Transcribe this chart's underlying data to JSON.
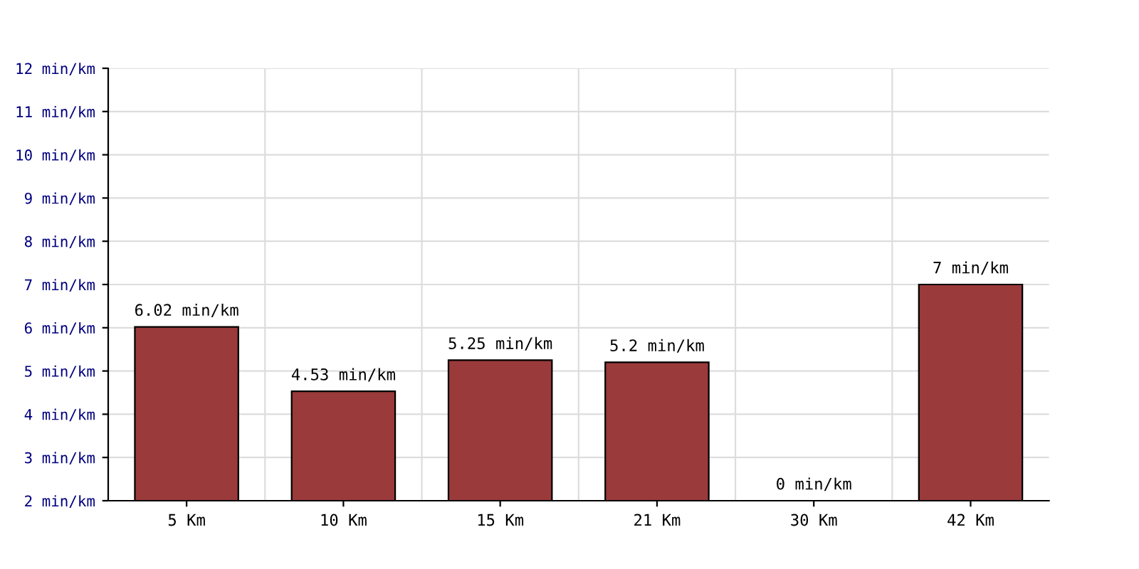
{
  "chart_data": {
    "type": "bar",
    "categories": [
      "5 Km",
      "10 Km",
      "15 Km",
      "21 Km",
      "30 Km",
      "42 Km"
    ],
    "values": [
      6.02,
      4.53,
      5.25,
      5.2,
      null,
      7
    ],
    "value_labels": [
      "6.02 min/km",
      "4.53 min/km",
      "5.25 min/km",
      "5.2 min/km",
      "0 min/km",
      "7 min/km"
    ],
    "color": "#9a3a3a",
    "ylim": [
      2,
      12
    ],
    "yticks": [
      {
        "value": 2,
        "label": "2 min/km"
      },
      {
        "value": 3,
        "label": "3 min/km"
      },
      {
        "value": 4,
        "label": "4 min/km"
      },
      {
        "value": 5,
        "label": "5 min/km"
      },
      {
        "value": 6,
        "label": "6 min/km"
      },
      {
        "value": 7,
        "label": "7 min/km"
      },
      {
        "value": 8,
        "label": "8 min/km"
      },
      {
        "value": 9,
        "label": "9 min/km"
      },
      {
        "value": 10,
        "label": "10 min/km"
      },
      {
        "value": 11,
        "label": "11 min/km"
      },
      {
        "value": 12,
        "label": "12 min/km"
      }
    ],
    "grid": true,
    "legend": false
  }
}
